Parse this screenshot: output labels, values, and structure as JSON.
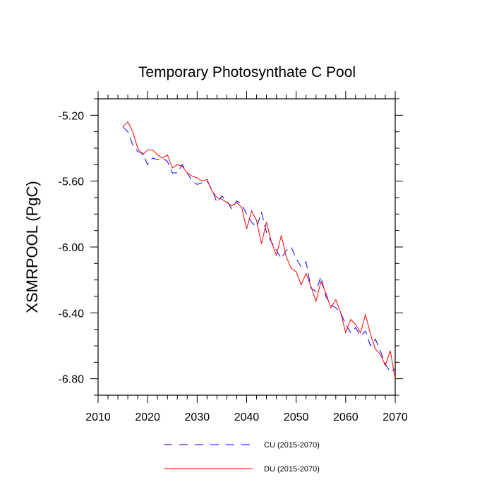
{
  "chart_data": {
    "type": "line",
    "title": "Temporary Photosynthate C Pool",
    "xlabel": "",
    "ylabel": "XSMRPOOL  (PgC)",
    "xlim": [
      2010,
      2070
    ],
    "ylim": [
      -6.9,
      -5.1
    ],
    "xticks": [
      2010,
      2020,
      2030,
      2040,
      2050,
      2060,
      2070
    ],
    "xtick_labels": [
      "2010",
      "2020",
      "2030",
      "2040",
      "2050",
      "2060",
      "2070"
    ],
    "yticks": [
      -5.2,
      -5.6,
      -6.0,
      -6.4,
      -6.8
    ],
    "ytick_labels": [
      "-5.20",
      "-5.60",
      "-6.00",
      "-6.40",
      "-6.80"
    ],
    "x": [
      2015,
      2016,
      2017,
      2018,
      2019,
      2020,
      2021,
      2022,
      2023,
      2024,
      2025,
      2026,
      2027,
      2028,
      2029,
      2030,
      2031,
      2032,
      2033,
      2034,
      2035,
      2036,
      2037,
      2038,
      2039,
      2040,
      2041,
      2042,
      2043,
      2044,
      2045,
      2046,
      2047,
      2048,
      2049,
      2050,
      2051,
      2052,
      2053,
      2054,
      2055,
      2056,
      2057,
      2058,
      2059,
      2060,
      2061,
      2062,
      2063,
      2064,
      2065,
      2066,
      2067,
      2068,
      2069,
      2070
    ],
    "series": [
      {
        "name": "CU (2015-2070)",
        "color": "#0000ff",
        "style": "dashed",
        "values": [
          -5.27,
          -5.3,
          -5.38,
          -5.42,
          -5.43,
          -5.5,
          -5.46,
          -5.47,
          -5.46,
          -5.48,
          -5.55,
          -5.55,
          -5.5,
          -5.55,
          -5.6,
          -5.62,
          -5.61,
          -5.6,
          -5.65,
          -5.73,
          -5.69,
          -5.72,
          -5.77,
          -5.72,
          -5.74,
          -5.8,
          -5.85,
          -5.88,
          -5.79,
          -5.91,
          -5.97,
          -6.02,
          -6.07,
          -6.02,
          -6.0,
          -6.07,
          -6.12,
          -6.09,
          -6.25,
          -6.27,
          -6.18,
          -6.3,
          -6.35,
          -6.37,
          -6.4,
          -6.47,
          -6.52,
          -6.49,
          -6.54,
          -6.51,
          -6.6,
          -6.56,
          -6.63,
          -6.71,
          -6.76,
          -6.74
        ]
      },
      {
        "name": "DU (2015-2070)",
        "color": "#ff0000",
        "style": "solid",
        "values": [
          -5.27,
          -5.24,
          -5.3,
          -5.4,
          -5.44,
          -5.41,
          -5.41,
          -5.44,
          -5.46,
          -5.44,
          -5.52,
          -5.5,
          -5.51,
          -5.55,
          -5.57,
          -5.58,
          -5.6,
          -5.59,
          -5.66,
          -5.7,
          -5.71,
          -5.73,
          -5.75,
          -5.73,
          -5.76,
          -5.89,
          -5.78,
          -5.84,
          -5.98,
          -5.85,
          -5.97,
          -6.05,
          -5.93,
          -6.06,
          -6.13,
          -6.15,
          -6.23,
          -6.16,
          -6.24,
          -6.33,
          -6.21,
          -6.28,
          -6.37,
          -6.32,
          -6.4,
          -6.52,
          -6.44,
          -6.47,
          -6.52,
          -6.41,
          -6.53,
          -6.62,
          -6.65,
          -6.72,
          -6.63,
          -6.8
        ]
      }
    ],
    "legend_position": "bottom"
  }
}
